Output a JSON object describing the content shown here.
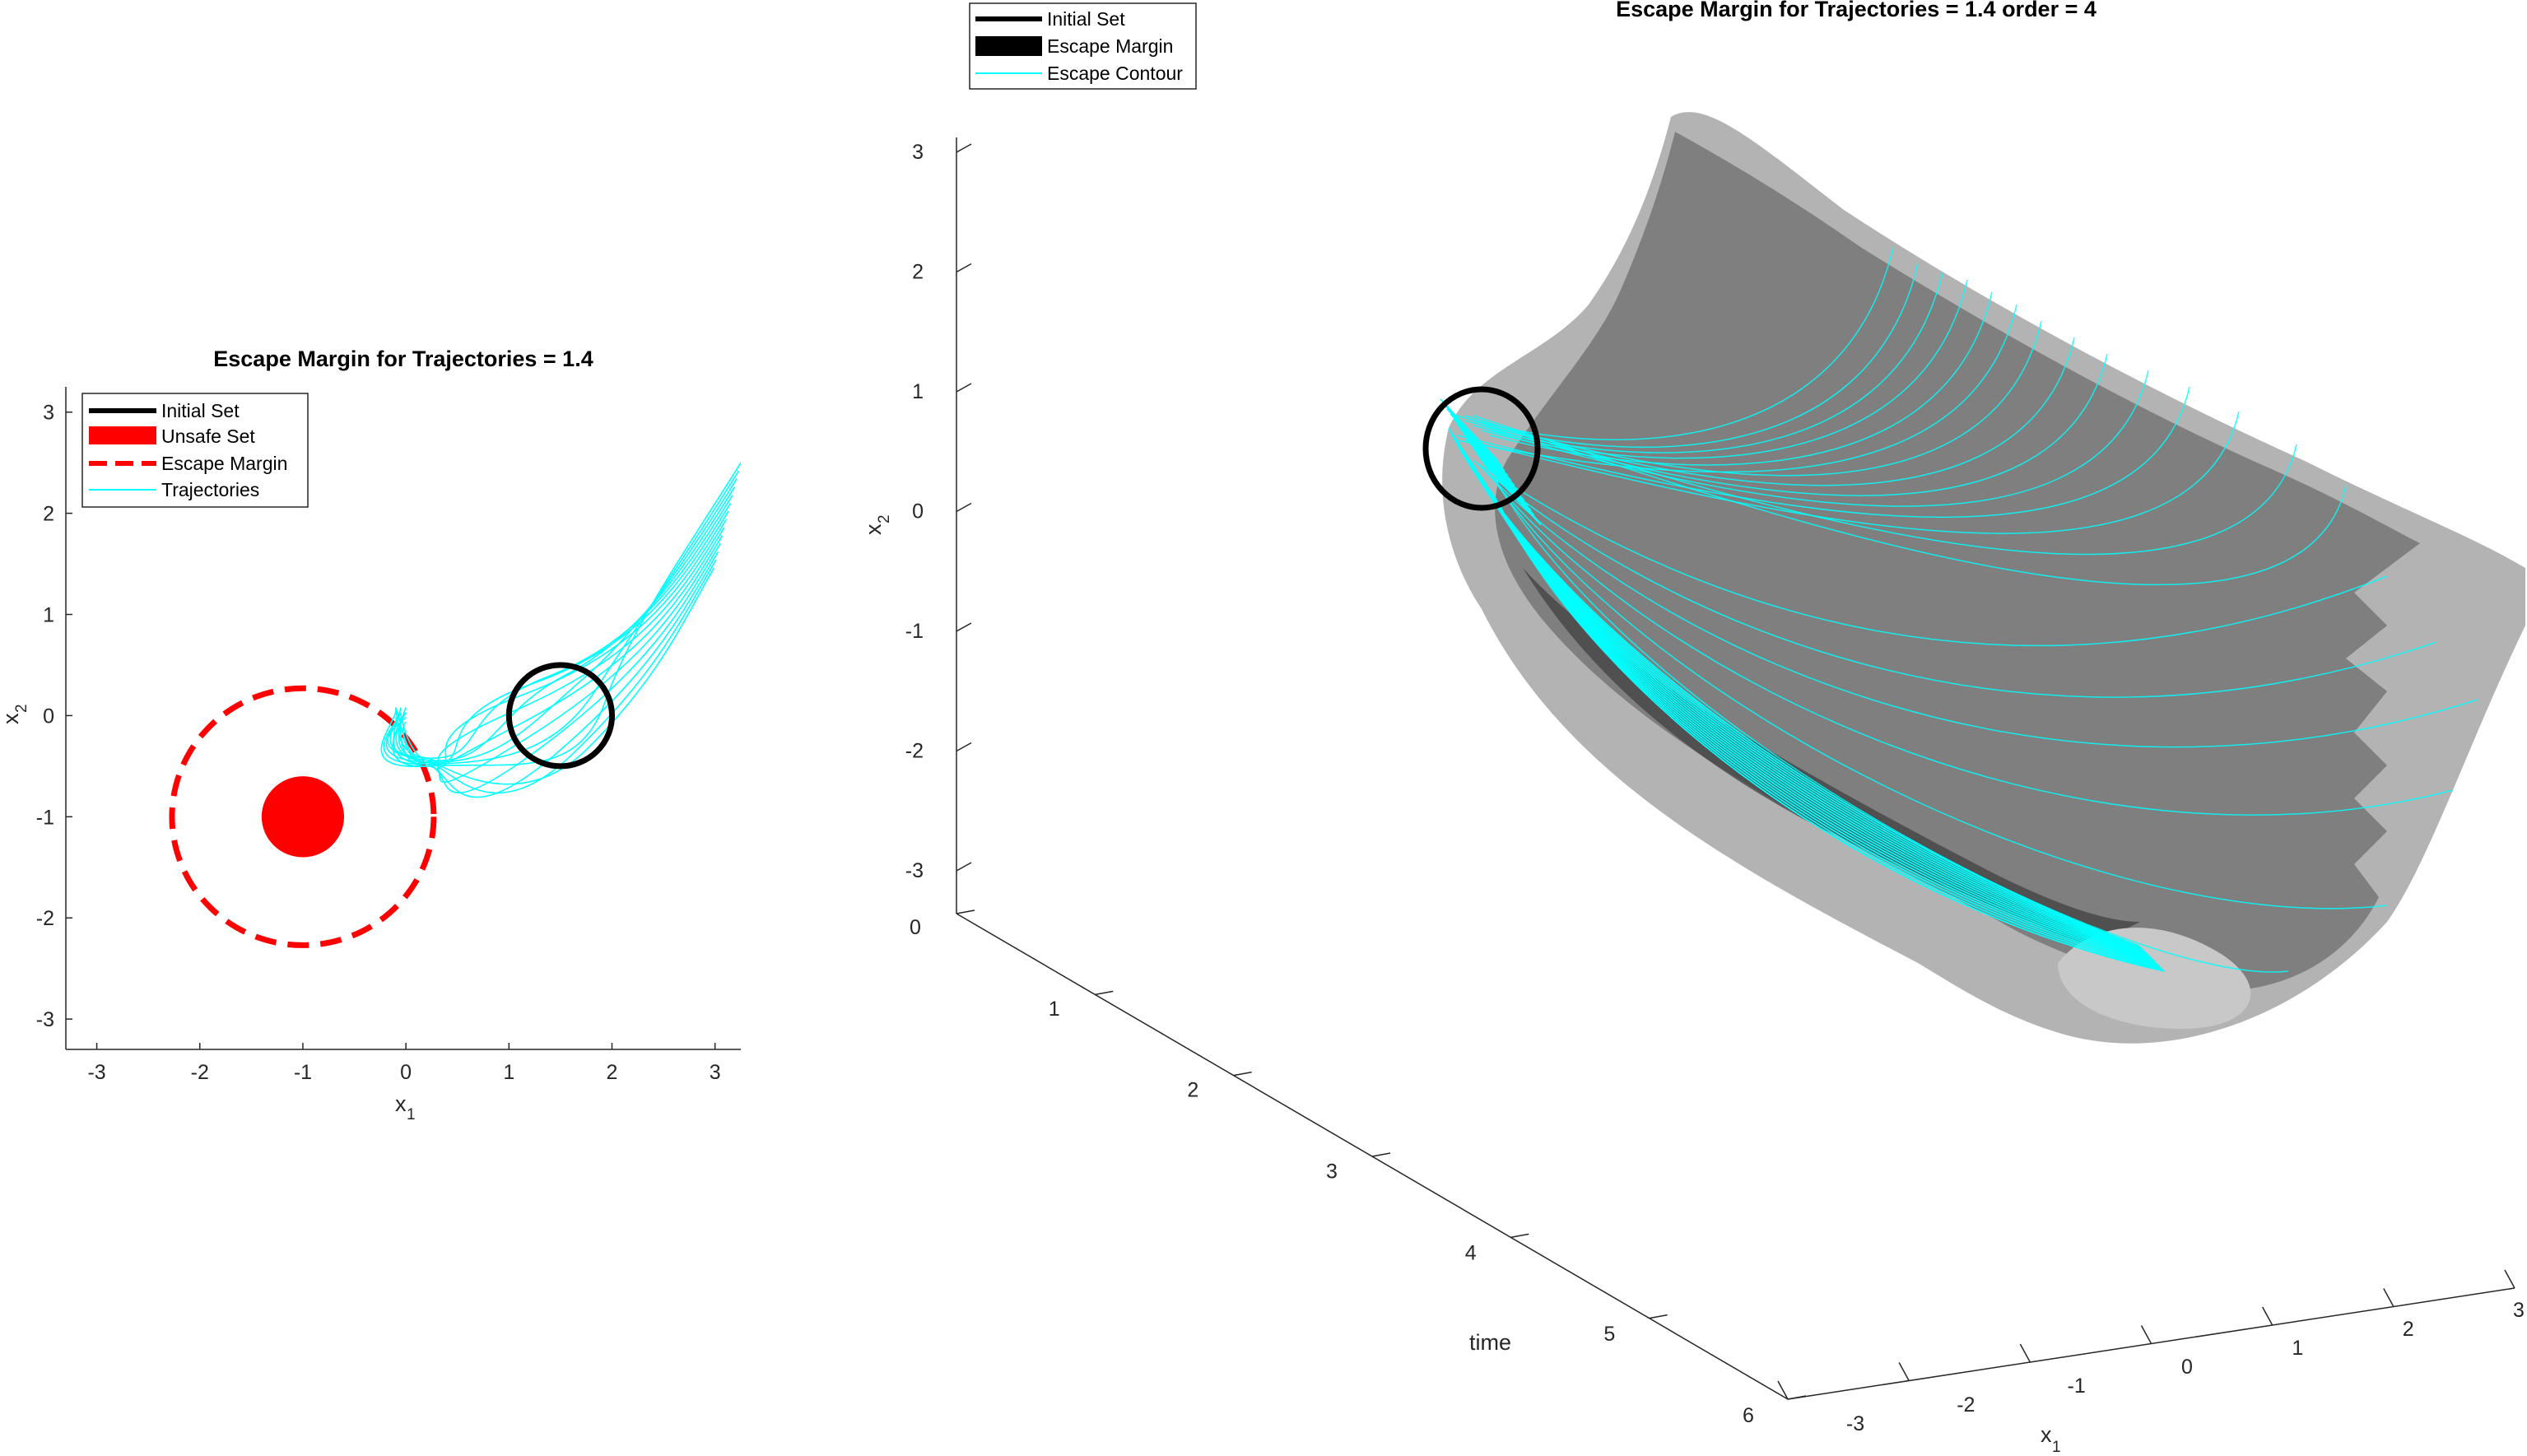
{
  "chart_data": [
    {
      "type": "line",
      "title": "Escape Margin for Trajectories = 1.4",
      "xlabel": "x",
      "xlabel_sub": "1",
      "ylabel": "x",
      "ylabel_sub": "2",
      "xlim": [
        -3.3,
        3.25
      ],
      "ylim": [
        -3.3,
        3.25
      ],
      "xticks": [
        -3,
        -2,
        -1,
        0,
        1,
        2,
        3
      ],
      "yticks": [
        -3,
        -2,
        -1,
        0,
        1,
        2,
        3
      ],
      "legend_location": "top-left",
      "legend": [
        {
          "label": "Initial Set",
          "color": "#000000",
          "style": "thick-line"
        },
        {
          "label": "Unsafe Set",
          "color": "#ff0000",
          "style": "patch"
        },
        {
          "label": "Escape Margin",
          "color": "#ff0000",
          "style": "dashed"
        },
        {
          "label": "Trajectories",
          "color": "#00ffff",
          "style": "thin-line"
        }
      ],
      "initial_set": {
        "center": [
          1.5,
          0.0
        ],
        "radius": 0.5,
        "color": "#000000"
      },
      "unsafe_set": {
        "center": [
          -1.0,
          -1.0
        ],
        "radius": 0.4,
        "color": "#ff0000"
      },
      "escape_margin": {
        "center": [
          -1.0,
          -1.0
        ],
        "radius": 1.27,
        "color": "#ff0000"
      },
      "trajectories": {
        "color": "#00ffff",
        "count": 14,
        "endpoint_start": [
          3.25,
          2.5
        ],
        "endpoint_end": [
          -0.1,
          0.08
        ]
      }
    },
    {
      "type": "line",
      "title": "Escape Margin for Trajectories = 1.4 order = 4",
      "xlabel": "x",
      "xlabel_sub": "1",
      "ylabel": "x",
      "ylabel_sub": "2",
      "zlabel": "time",
      "xticks": [
        -3,
        -2,
        -1,
        0,
        1,
        2,
        3
      ],
      "yticks": [
        -3,
        -2,
        -1,
        0,
        1,
        2,
        3
      ],
      "zticks": [
        0,
        1,
        2,
        3,
        4,
        5,
        6
      ],
      "legend_location": "top-left",
      "legend": [
        {
          "label": "Initial Set",
          "color": "#000000",
          "style": "thick-line"
        },
        {
          "label": "Escape Margin",
          "color": "#000000",
          "style": "patch"
        },
        {
          "label": "Escape Contour",
          "color": "#00ffff",
          "style": "thin-line"
        }
      ],
      "surface_colors": {
        "outer": "#b3b3b3",
        "inner": "#7f7f7f",
        "dark": "#3c3c3c"
      }
    }
  ]
}
